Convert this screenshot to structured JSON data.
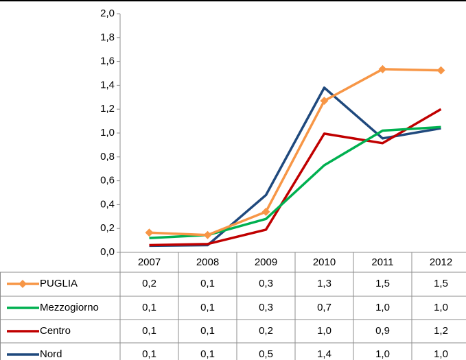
{
  "chart_data": {
    "type": "line",
    "categories": [
      "2007",
      "2008",
      "2009",
      "2010",
      "2011",
      "2012"
    ],
    "ylim": [
      0,
      2
    ],
    "yticks": [
      {
        "value": 0,
        "label": "0,0"
      },
      {
        "value": 0.2,
        "label": "0,2"
      },
      {
        "value": 0.4,
        "label": "0,4"
      },
      {
        "value": 0.6,
        "label": "0,6"
      },
      {
        "value": 0.8,
        "label": "0,8"
      },
      {
        "value": 1,
        "label": "1,0"
      },
      {
        "value": 1.2,
        "label": "1,2"
      },
      {
        "value": 1.4,
        "label": "1,4"
      },
      {
        "value": 1.6,
        "label": "1,6"
      },
      {
        "value": 1.8,
        "label": "1,8"
      },
      {
        "value": 2,
        "label": "2,0"
      }
    ],
    "series": [
      {
        "name": "PUGLIA",
        "color": "#f79646",
        "marker": "diamond",
        "values": [
          0.165,
          0.145,
          0.34,
          1.27,
          1.535,
          1.525
        ],
        "value_labels": [
          "0,2",
          "0,1",
          "0,3",
          "1,3",
          "1,5",
          "1,5"
        ]
      },
      {
        "name": "Mezzogiorno",
        "color": "#00b050",
        "values": [
          0.12,
          0.145,
          0.28,
          0.73,
          1.02,
          1.05
        ],
        "value_labels": [
          "0,1",
          "0,1",
          "0,3",
          "0,7",
          "1,0",
          "1,0"
        ]
      },
      {
        "name": "Centro",
        "color": "#c00000",
        "values": [
          0.06,
          0.07,
          0.19,
          0.995,
          0.915,
          1.2
        ],
        "value_labels": [
          "0,1",
          "0,1",
          "0,2",
          "1,0",
          "0,9",
          "1,2"
        ]
      },
      {
        "name": "Nord",
        "color": "#1f497d",
        "values": [
          0.055,
          0.06,
          0.48,
          1.38,
          0.955,
          1.04
        ],
        "value_labels": [
          "0,1",
          "0,1",
          "0,5",
          "1,4",
          "1,0",
          "1,0"
        ]
      }
    ]
  }
}
